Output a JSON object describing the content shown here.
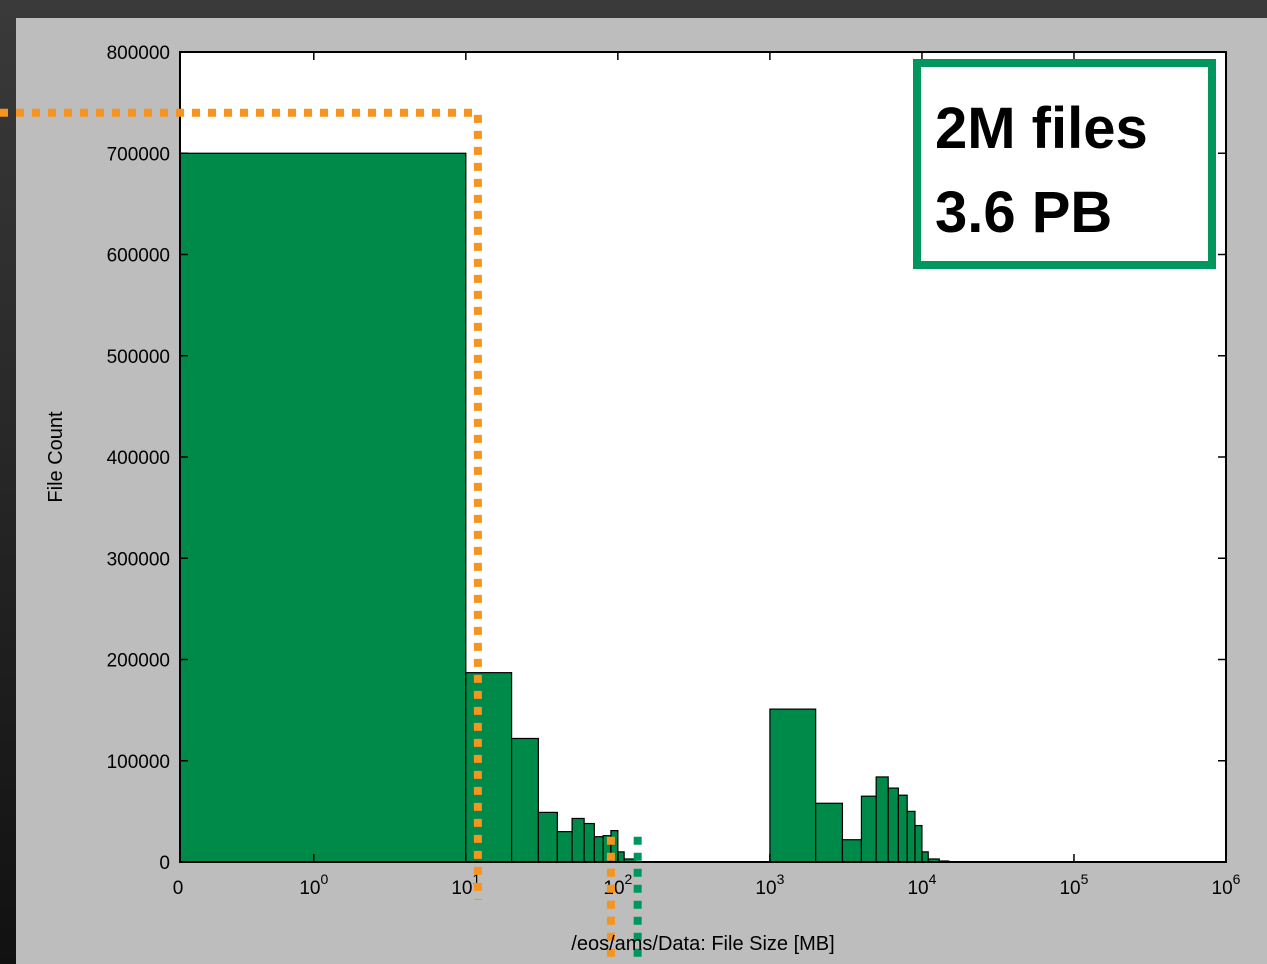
{
  "colors": {
    "bar_fill": "#008a4a",
    "bar_edge": "#000000",
    "annotation_orange": "#f7941d",
    "annotation_green": "#00965e",
    "box_border": "#00965e",
    "panel_bg": "#bdbdbd",
    "plot_bg": "#ffffff"
  },
  "chart_data": {
    "type": "bar",
    "title": "",
    "xlabel": "/eos/ams/Data:  File Size [MB]",
    "ylabel": "File Count",
    "x_scale": "symlog",
    "xlim": [
      0,
      1000000
    ],
    "ylim": [
      0,
      800000
    ],
    "grid": false,
    "y_ticks": [
      {
        "value": 0,
        "label": "0"
      },
      {
        "value": 100000,
        "label": "100000"
      },
      {
        "value": 200000,
        "label": "200000"
      },
      {
        "value": 300000,
        "label": "300000"
      },
      {
        "value": 400000,
        "label": "400000"
      },
      {
        "value": 500000,
        "label": "500000"
      },
      {
        "value": 600000,
        "label": "600000"
      },
      {
        "value": 700000,
        "label": "700000"
      },
      {
        "value": 800000,
        "label": "800000"
      }
    ],
    "x_ticks": [
      {
        "value": 0,
        "base": "0",
        "exp": ""
      },
      {
        "value": 1,
        "base": "10",
        "exp": "0"
      },
      {
        "value": 10,
        "base": "10",
        "exp": "1"
      },
      {
        "value": 100,
        "base": "10",
        "exp": "2"
      },
      {
        "value": 1000,
        "base": "10",
        "exp": "3"
      },
      {
        "value": 10000,
        "base": "10",
        "exp": "4"
      },
      {
        "value": 100000,
        "base": "10",
        "exp": "5"
      },
      {
        "value": 1000000,
        "base": "10",
        "exp": "6"
      }
    ],
    "bins": [
      {
        "x0": 0,
        "x1": 10,
        "count": 700000
      },
      {
        "x0": 10,
        "x1": 20,
        "count": 187000
      },
      {
        "x0": 20,
        "x1": 30,
        "count": 122000
      },
      {
        "x0": 30,
        "x1": 40,
        "count": 49000
      },
      {
        "x0": 40,
        "x1": 50,
        "count": 30000
      },
      {
        "x0": 50,
        "x1": 60,
        "count": 43000
      },
      {
        "x0": 60,
        "x1": 70,
        "count": 38000
      },
      {
        "x0": 70,
        "x1": 80,
        "count": 25000
      },
      {
        "x0": 80,
        "x1": 90,
        "count": 26000
      },
      {
        "x0": 90,
        "x1": 100,
        "count": 31000
      },
      {
        "x0": 100,
        "x1": 110,
        "count": 10000
      },
      {
        "x0": 110,
        "x1": 130,
        "count": 3000
      },
      {
        "x0": 1000,
        "x1": 2000,
        "count": 151000
      },
      {
        "x0": 2000,
        "x1": 3000,
        "count": 58000
      },
      {
        "x0": 3000,
        "x1": 4000,
        "count": 22000
      },
      {
        "x0": 4000,
        "x1": 5000,
        "count": 65000
      },
      {
        "x0": 5000,
        "x1": 6000,
        "count": 84000
      },
      {
        "x0": 6000,
        "x1": 7000,
        "count": 73000
      },
      {
        "x0": 7000,
        "x1": 8000,
        "count": 66000
      },
      {
        "x0": 8000,
        "x1": 9000,
        "count": 50000
      },
      {
        "x0": 9000,
        "x1": 10000,
        "count": 36000
      },
      {
        "x0": 10000,
        "x1": 11000,
        "count": 10000
      },
      {
        "x0": 11000,
        "x1": 13000,
        "count": 3000
      },
      {
        "x0": 13000,
        "x1": 15000,
        "count": 1000
      }
    ],
    "annotation": {
      "lines": [
        "2M files",
        "3.6 PB"
      ],
      "placement": "top-right"
    },
    "guide_lines": [
      {
        "color": "orange",
        "path": [
          [
            0,
            740000
          ],
          [
            12,
            740000
          ],
          [
            12,
            0
          ]
        ]
      },
      {
        "color": "orange",
        "path": [
          [
            90,
            25000
          ],
          [
            90,
            0
          ]
        ]
      },
      {
        "color": "green",
        "path": [
          [
            135,
            25000
          ],
          [
            135,
            0
          ]
        ]
      }
    ]
  }
}
